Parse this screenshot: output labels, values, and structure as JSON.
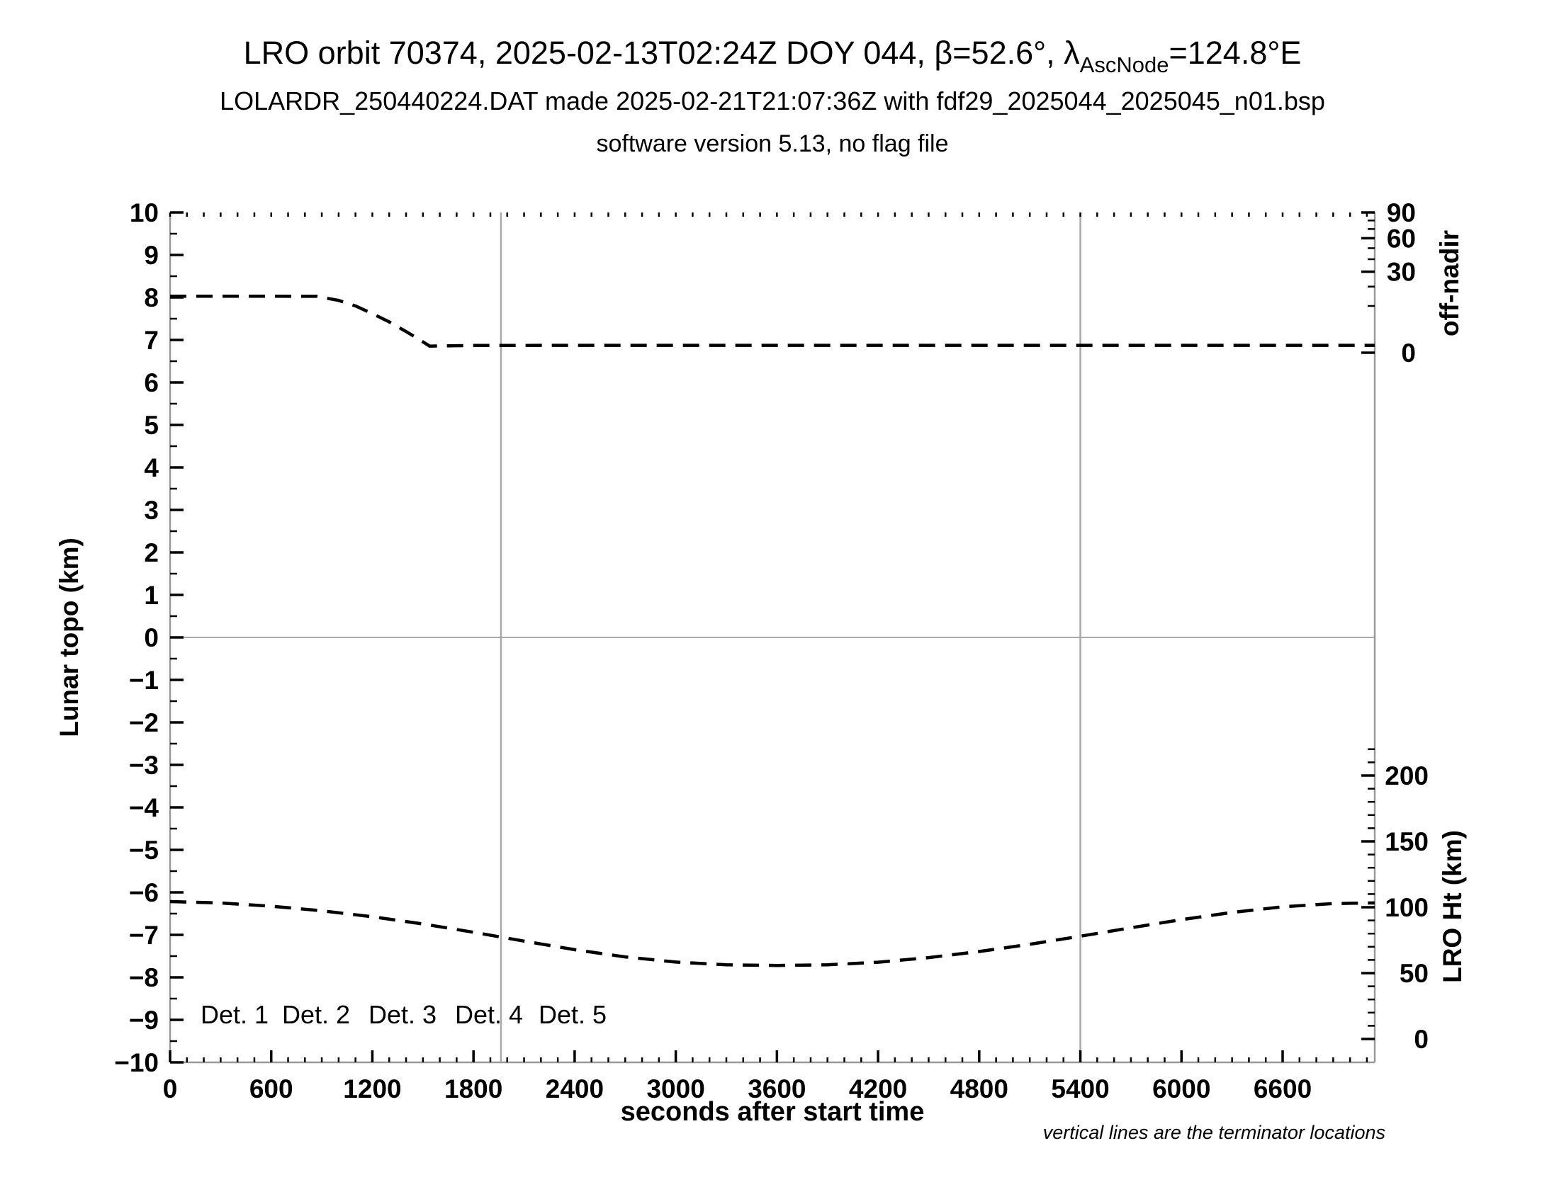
{
  "header": {
    "title_pre": "LRO orbit 70374, 2025-02-13T02:24Z DOY 044, β=52.6°, λ",
    "title_sub": "AscNode",
    "title_post": "=124.8°E",
    "subtitle": "LOLARDR_250440224.DAT made 2025-02-21T21:07:36Z with fdf29_2025044_2025045_n01.bsp",
    "subtitle2": "software version 5.13, no flag file"
  },
  "footnote": "vertical lines are the terminator locations",
  "legend": {
    "items": [
      {
        "label": "Det. 1",
        "color": "#000000"
      },
      {
        "label": "Det. 2",
        "color": "#0000ee"
      },
      {
        "label": "Det. 3",
        "color": "#00d300"
      },
      {
        "label": "Det. 4",
        "color": "#ffa500"
      },
      {
        "label": "Det. 5",
        "color": "#ff0000"
      }
    ]
  },
  "chart_data": {
    "type": "line",
    "title": "LRO orbit 70374, 2025-02-13T02:24Z DOY 044, β=52.6°, λAscNode=124.8°E",
    "xlabel": "seconds after start time",
    "xlim": [
      0,
      7146
    ],
    "x_ticks": [
      0,
      600,
      1200,
      1800,
      2400,
      3000,
      3600,
      4200,
      4800,
      5400,
      6000,
      6600
    ],
    "x_minor_step": 100,
    "left_axis": {
      "label": "Lunar topo (km)",
      "lim": [
        -10,
        10
      ],
      "ticks": [
        10,
        9,
        8,
        7,
        6,
        5,
        4,
        3,
        2,
        1,
        0,
        -1,
        -2,
        -3,
        -4,
        -5,
        -6,
        -7,
        -8,
        -9,
        -10
      ],
      "minor_step": 0.5,
      "zero_gridline": true
    },
    "right_axis_top": {
      "label": "off-nadir",
      "units": "deg",
      "ticks": [
        90,
        60,
        30,
        0
      ],
      "minor_ticks": [
        10,
        20,
        40,
        50,
        70,
        80
      ],
      "scale": "sqrt",
      "mapping_topo_units": "topo = 6.70 + 3.30*sqrt(deg/90)"
    },
    "right_axis_bottom": {
      "label": "LRO Ht (km)",
      "units": "km",
      "ticks": [
        200,
        150,
        100,
        50,
        0
      ],
      "minor_step": 10,
      "minor_max": 220,
      "mapping_topo_units": "topo = -9.45 + 0.031*km"
    },
    "gridlines": {
      "horizontal_topo": [
        0
      ],
      "terminator_lines_sec": [
        1963,
        5400
      ]
    },
    "series": [
      {
        "name": "off-nadir angle",
        "axis": "right_top",
        "units": "deg",
        "style": "dashed-black",
        "points": [
          [
            0,
            14.6
          ],
          [
            300,
            14.6
          ],
          [
            600,
            14.6
          ],
          [
            870,
            14.55
          ],
          [
            1000,
            12.5
          ],
          [
            1100,
            10.0
          ],
          [
            1200,
            7.0
          ],
          [
            1300,
            4.35
          ],
          [
            1400,
            2.05
          ],
          [
            1470,
            0.9
          ],
          [
            1540,
            0.2
          ],
          [
            1800,
            0.24
          ],
          [
            2400,
            0.25
          ],
          [
            3000,
            0.25
          ],
          [
            3600,
            0.25
          ],
          [
            4200,
            0.25
          ],
          [
            4800,
            0.25
          ],
          [
            5400,
            0.25
          ],
          [
            6000,
            0.25
          ],
          [
            6600,
            0.25
          ],
          [
            7146,
            0.25
          ]
        ]
      },
      {
        "name": "LRO height",
        "axis": "right_bottom",
        "units": "km",
        "style": "dashed-black",
        "points": [
          [
            0,
            104.3
          ],
          [
            300,
            103.2
          ],
          [
            600,
            100.8
          ],
          [
            900,
            97.3
          ],
          [
            1200,
            92.8
          ],
          [
            1500,
            87.3
          ],
          [
            1800,
            81.0
          ],
          [
            2100,
            74.3
          ],
          [
            2400,
            67.8
          ],
          [
            2700,
            62.3
          ],
          [
            3000,
            58.4
          ],
          [
            3300,
            56.3
          ],
          [
            3600,
            55.8
          ],
          [
            3900,
            56.3
          ],
          [
            4200,
            58.3
          ],
          [
            4500,
            61.8
          ],
          [
            4800,
            66.4
          ],
          [
            5100,
            71.9
          ],
          [
            5400,
            78.0
          ],
          [
            5700,
            84.4
          ],
          [
            6000,
            90.6
          ],
          [
            6300,
            96.1
          ],
          [
            6600,
            100.3
          ],
          [
            6900,
            102.8
          ],
          [
            7146,
            103.3
          ]
        ]
      }
    ]
  }
}
